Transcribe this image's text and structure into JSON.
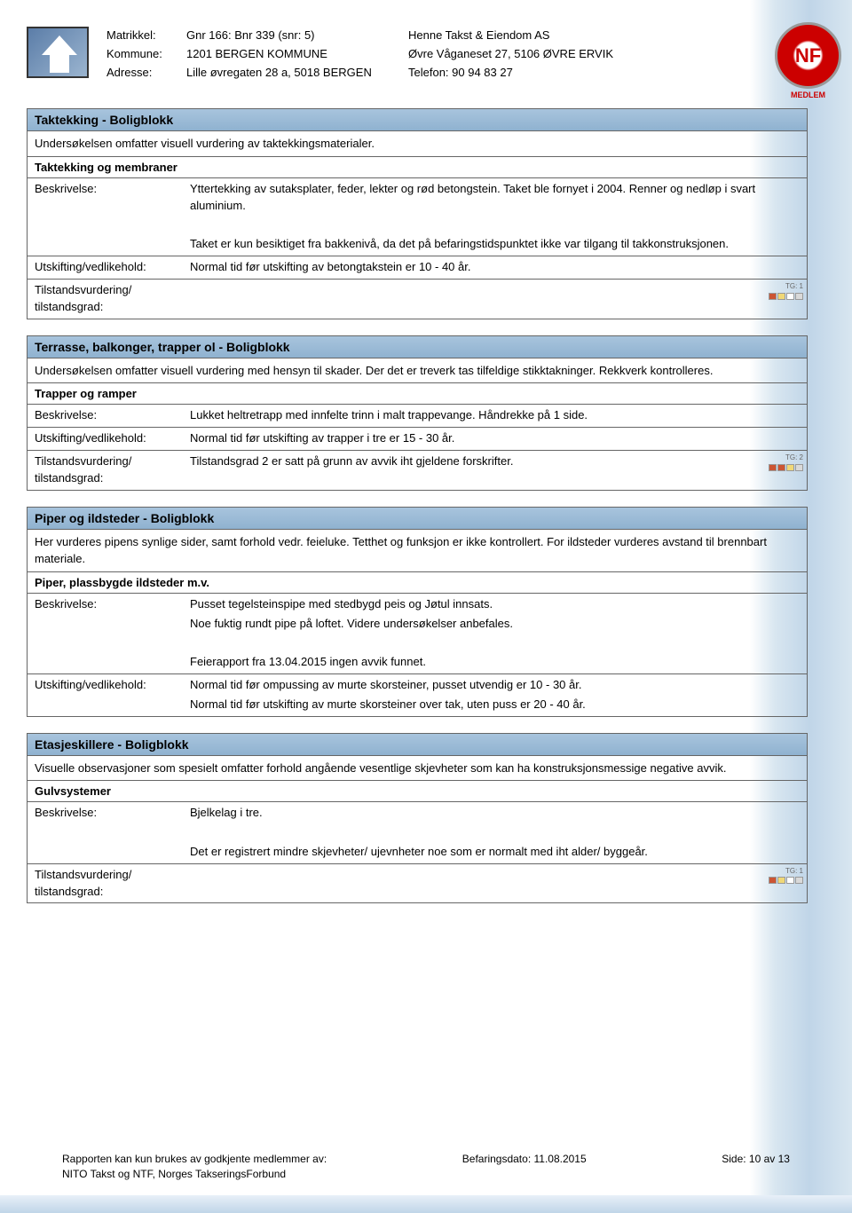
{
  "header": {
    "matrikkel_label": "Matrikkel:",
    "matrikkel_value": "Gnr 166: Bnr 339 (snr: 5)",
    "kommune_label": "Kommune:",
    "kommune_value": "1201 BERGEN KOMMUNE",
    "adresse_label": "Adresse:",
    "adresse_value": "Lille øvregaten 28 a, 5018 BERGEN",
    "company_name": "Henne Takst & Eiendom AS",
    "company_address": "Øvre Våganeset 27, 5106 ØVRE ERVIK",
    "company_phone": "Telefon: 90 94 83 27",
    "medlem_label": "MEDLEM"
  },
  "sections": {
    "taktekking": {
      "title": "Taktekking - Boligblokk",
      "desc": "Undersøkelsen omfatter visuell vurdering av taktekkingsmaterialer.",
      "subtitle": "Taktekking og membraner",
      "beskrivelse_label": "Beskrivelse:",
      "beskrivelse_p1": "Yttertekking av sutaksplater, feder, lekter og rød betongstein. Taket ble fornyet i 2004. Renner og nedløp i svart aluminium.",
      "beskrivelse_p2": "Taket er kun besiktiget fra bakkenivå, da det på befaringstidspunktet ikke var tilgang til takkonstruksjonen.",
      "utskifting_label": "Utskifting/vedlikehold:",
      "utskifting_value": "Normal tid før utskifting av betongtakstein er 10 - 40 år.",
      "tilstand_label": "Tilstandsvurdering/\ntilstandsgrad:",
      "tg_label": "TG: 1",
      "tg_colors": [
        "#cc5533",
        "#f0d877",
        "#ffffff",
        "#d9d9d9"
      ]
    },
    "terrasse": {
      "title": "Terrasse, balkonger, trapper ol - Boligblokk",
      "desc": "Undersøkelsen omfatter visuell vurdering med hensyn til skader. Der det er treverk tas tilfeldige stikktakninger. Rekkverk kontrolleres.",
      "subtitle": "Trapper og ramper",
      "beskrivelse_label": "Beskrivelse:",
      "beskrivelse_value": "Lukket heltretrapp med innfelte trinn i malt trappevange. Håndrekke på 1 side.",
      "utskifting_label": "Utskifting/vedlikehold:",
      "utskifting_value": "Normal tid før utskifting av trapper i tre er 15 - 30 år.",
      "tilstand_label": "Tilstandsvurdering/\ntilstandsgrad:",
      "tilstand_value": "Tilstandsgrad 2 er satt på grunn av avvik iht gjeldene forskrifter.",
      "tg_label": "TG: 2",
      "tg_colors": [
        "#cc5533",
        "#cc5533",
        "#f0d877",
        "#d9d9d9"
      ]
    },
    "piper": {
      "title": "Piper og ildsteder - Boligblokk",
      "desc": "Her vurderes pipens synlige sider, samt forhold vedr. feieluke. Tetthet og funksjon er ikke kontrollert. For ildsteder vurderes avstand til brennbart materiale.",
      "subtitle": "Piper, plassbygde ildsteder m.v.",
      "beskrivelse_label": "Beskrivelse:",
      "beskrivelse_p1": "Pusset tegelsteinspipe med stedbygd peis og Jøtul innsats.",
      "beskrivelse_p2": "Noe fuktig rundt pipe på loftet. Videre undersøkelser anbefales.",
      "beskrivelse_p3": "Feierapport fra 13.04.2015 ingen avvik funnet.",
      "utskifting_label": "Utskifting/vedlikehold:",
      "utskifting_p1": "Normal tid før ompussing av murte skorsteiner, pusset utvendig er 10 - 30 år.",
      "utskifting_p2": "Normal tid før utskifting av murte skorsteiner over tak, uten puss er 20 - 40 år."
    },
    "etasje": {
      "title": "Etasjeskillere - Boligblokk",
      "desc": "Visuelle observasjoner som spesielt omfatter forhold angående vesentlige skjevheter som kan ha konstruksjonsmessige negative avvik.",
      "subtitle": "Gulvsystemer",
      "beskrivelse_label": "Beskrivelse:",
      "beskrivelse_p1": "Bjelkelag i tre.",
      "beskrivelse_p2": "Det er registrert mindre skjevheter/ ujevnheter noe som er normalt med iht alder/ byggeår.",
      "tilstand_label": "Tilstandsvurdering/\ntilstandsgrad:",
      "tg_label": "TG: 1",
      "tg_colors": [
        "#cc5533",
        "#f0d877",
        "#ffffff",
        "#d9d9d9"
      ]
    }
  },
  "footer": {
    "left_p1": "Rapporten kan kun brukes av godkjente medlemmer av:",
    "left_p2": "NITO Takst og NTF, Norges TakseringsForbund",
    "center": "Befaringsdato: 11.08.2015",
    "right": "Side: 10 av 13"
  },
  "colors": {
    "header_bg": "#9eb9d5",
    "border": "#666666"
  }
}
